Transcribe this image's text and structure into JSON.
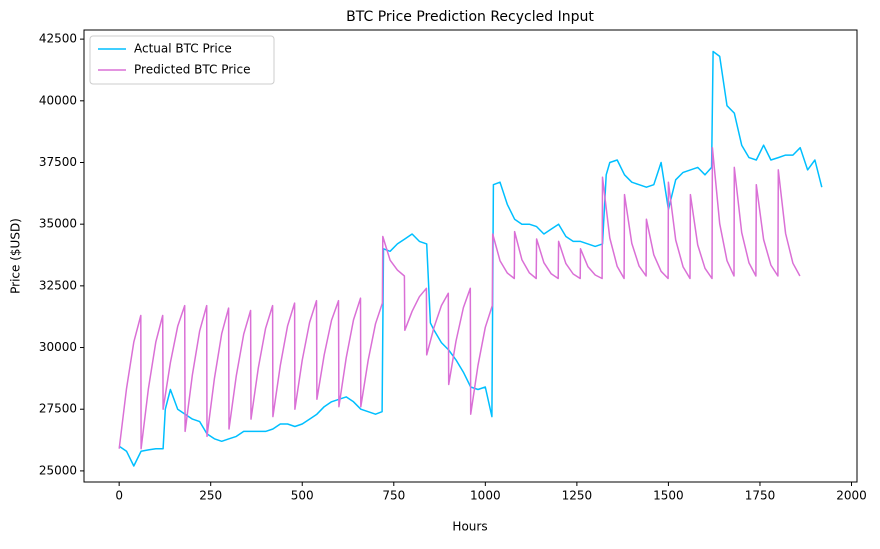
{
  "chart_data": {
    "type": "line",
    "title": "BTC Price Prediction Recycled Input",
    "xlabel": "Hours",
    "ylabel": "Price ($USD)",
    "xlim": [
      -96,
      2015
    ],
    "ylim": [
      24550,
      42870
    ],
    "xticks": [
      0,
      250,
      500,
      750,
      1000,
      1250,
      1500,
      1750,
      2000
    ],
    "yticks": [
      25000,
      27500,
      30000,
      32500,
      35000,
      37500,
      40000,
      42500
    ],
    "grid": false,
    "legend": "upper left",
    "series": [
      {
        "name": "Actual BTC Price",
        "color": "#00bfff",
        "x": [
          0,
          20,
          40,
          60,
          80,
          100,
          120,
          126,
          140,
          160,
          180,
          200,
          220,
          240,
          260,
          280,
          300,
          320,
          340,
          360,
          380,
          400,
          420,
          440,
          460,
          480,
          500,
          520,
          540,
          560,
          580,
          600,
          620,
          640,
          660,
          680,
          700,
          718,
          722,
          740,
          760,
          780,
          800,
          820,
          840,
          850,
          860,
          880,
          900,
          920,
          940,
          960,
          980,
          1000,
          1018,
          1022,
          1040,
          1060,
          1080,
          1100,
          1120,
          1140,
          1160,
          1180,
          1200,
          1220,
          1240,
          1260,
          1280,
          1300,
          1320,
          1330,
          1340,
          1360,
          1380,
          1400,
          1420,
          1440,
          1460,
          1480,
          1500,
          1520,
          1540,
          1560,
          1580,
          1600,
          1618,
          1622,
          1640,
          1660,
          1680,
          1700,
          1720,
          1740,
          1760,
          1780,
          1800,
          1820,
          1840,
          1860,
          1880,
          1900,
          1919
        ],
        "values": [
          26000,
          25800,
          25200,
          25800,
          25850,
          25900,
          25900,
          27500,
          28300,
          27500,
          27300,
          27100,
          27000,
          26500,
          26300,
          26200,
          26300,
          26400,
          26600,
          26600,
          26600,
          26600,
          26700,
          26900,
          26900,
          26800,
          26900,
          27100,
          27300,
          27600,
          27800,
          27900,
          28000,
          27800,
          27500,
          27400,
          27300,
          27400,
          34000,
          33900,
          34200,
          34400,
          34600,
          34300,
          34200,
          31000,
          30700,
          30200,
          29900,
          29500,
          29000,
          28400,
          28300,
          28400,
          27200,
          36600,
          36700,
          35800,
          35200,
          35000,
          35000,
          34900,
          34600,
          34800,
          35000,
          34500,
          34300,
          34300,
          34200,
          34100,
          34200,
          37000,
          37500,
          37600,
          37000,
          36700,
          36600,
          36500,
          36600,
          37500,
          35600,
          36800,
          37100,
          37200,
          37300,
          37000,
          37300,
          42000,
          41800,
          39800,
          39500,
          38200,
          37700,
          37600,
          38200,
          37600,
          37700,
          37800,
          37800,
          38100,
          37200,
          37600,
          36500
        ]
      },
      {
        "name": "Predicted BTC Price",
        "color": "#da70d6",
        "x": [
          0,
          20,
          40,
          59,
          60,
          80,
          100,
          119,
          120,
          140,
          160,
          179,
          180,
          200,
          220,
          239,
          240,
          260,
          280,
          299,
          300,
          320,
          340,
          359,
          360,
          380,
          400,
          419,
          420,
          440,
          460,
          479,
          480,
          500,
          520,
          539,
          540,
          560,
          580,
          599,
          600,
          620,
          640,
          659,
          660,
          680,
          700,
          719,
          720,
          740,
          760,
          779,
          780,
          800,
          820,
          839,
          840,
          860,
          880,
          899,
          900,
          920,
          940,
          959,
          960,
          980,
          1000,
          1019,
          1020,
          1040,
          1060,
          1079,
          1080,
          1100,
          1120,
          1139,
          1140,
          1160,
          1180,
          1199,
          1200,
          1220,
          1240,
          1259,
          1260,
          1280,
          1300,
          1319,
          1320,
          1340,
          1360,
          1379,
          1380,
          1400,
          1420,
          1439,
          1440,
          1460,
          1480,
          1499,
          1500,
          1520,
          1540,
          1559,
          1560,
          1580,
          1600,
          1619,
          1620,
          1640,
          1660,
          1679,
          1680,
          1700,
          1720,
          1739,
          1740,
          1760,
          1780,
          1799,
          1800,
          1820,
          1840,
          1859
        ],
        "values": [
          25900,
          28330,
          30220,
          31300,
          25900,
          28330,
          30220,
          31300,
          27500,
          29390,
          30860,
          31700,
          26600,
          28900,
          30680,
          31700,
          26400,
          28740,
          30560,
          31600,
          26700,
          28860,
          30540,
          31500,
          27100,
          29170,
          30780,
          31700,
          27200,
          29270,
          30880,
          31800,
          27500,
          29480,
          31020,
          31900,
          27900,
          29700,
          31100,
          31900,
          27600,
          29580,
          31120,
          32000,
          27600,
          29490,
          30960,
          31800,
          34500,
          33540,
          33140,
          32900,
          30700,
          31470,
          32060,
          32400,
          29700,
          30830,
          31700,
          32200,
          28500,
          30260,
          31620,
          32400,
          27300,
          29280,
          30820,
          31700,
          34600,
          33520,
          33020,
          32800,
          34700,
          33560,
          33030,
          32800,
          34400,
          33440,
          32990,
          32800,
          34300,
          33400,
          32980,
          32800,
          34000,
          33280,
          32940,
          32800,
          36900,
          34440,
          33290,
          32800,
          36200,
          34220,
          33300,
          32900,
          35200,
          33760,
          33090,
          32800,
          36700,
          34360,
          33270,
          32800,
          36200,
          34160,
          33210,
          32800,
          38100,
          35020,
          33520,
          32900,
          37300,
          34660,
          33430,
          32900,
          36600,
          34380,
          33340,
          32900,
          37200,
          34620,
          33420,
          32900
        ]
      }
    ]
  }
}
